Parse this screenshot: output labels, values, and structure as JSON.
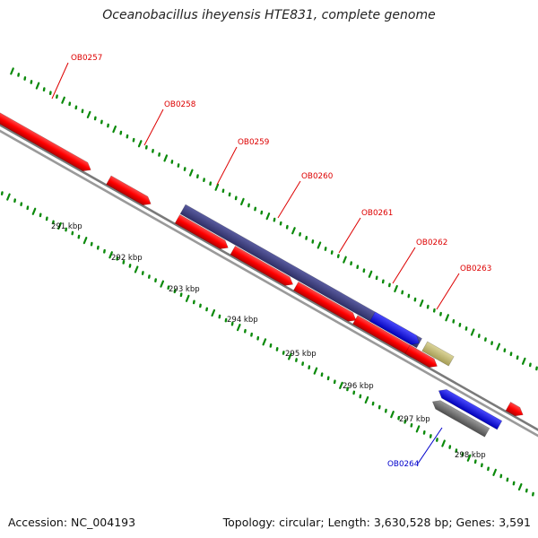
{
  "title": "Oceanobacillus iheyensis HTE831, complete genome",
  "footer": {
    "accession": "Accession: NC_004193",
    "stats": "Topology: circular; Length: 3,630,528 bp; Genes: 3,591"
  },
  "colors": {
    "forward_gene": "#ff0000",
    "reverse_gene": "#ff0000",
    "operon": "#3d3f80",
    "highlight_blue": "#0000ff",
    "khaki": "#c8c07a",
    "grey_gene": "#777777",
    "backbone": "#999999",
    "ticks": "#0b8a0b",
    "label_red": "#dd0000",
    "label_blue": "#0000cc"
  },
  "axis": {
    "ticks": [
      {
        "label": "291 kbp"
      },
      {
        "label": "292 kbp"
      },
      {
        "label": "293 kbp"
      },
      {
        "label": "294 kbp"
      },
      {
        "label": "295 kbp"
      },
      {
        "label": "296 kbp"
      },
      {
        "label": "297 kbp"
      },
      {
        "label": "298 kbp"
      }
    ]
  },
  "genes": [
    {
      "label": "OB0257",
      "color": "#dd0000"
    },
    {
      "label": "OB0258",
      "color": "#dd0000"
    },
    {
      "label": "OB0259",
      "color": "#dd0000"
    },
    {
      "label": "OB0260",
      "color": "#dd0000"
    },
    {
      "label": "OB0261",
      "color": "#dd0000"
    },
    {
      "label": "OB0262",
      "color": "#dd0000"
    },
    {
      "label": "OB0263",
      "color": "#dd0000"
    },
    {
      "label": "OB0264",
      "color": "#0000cc"
    }
  ]
}
